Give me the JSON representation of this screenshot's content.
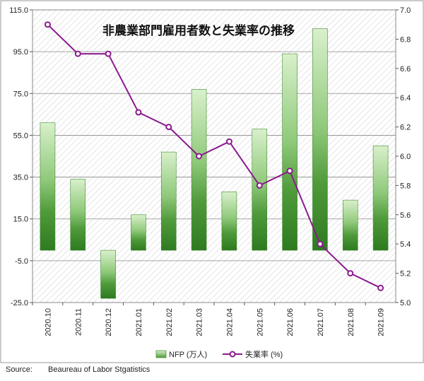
{
  "chart_data": {
    "type": "bar+line",
    "title": "非農業部門雇用者数と失業率の推移",
    "categories": [
      "2020.10",
      "2020.11",
      "2020.12",
      "2021.01",
      "2021.02",
      "2021.03",
      "2021.04",
      "2021.05",
      "2021.06",
      "2021.07",
      "2021.08",
      "2021.09"
    ],
    "series": [
      {
        "name": "NFP (万人)",
        "type": "bar",
        "axis": "left",
        "values": [
          61,
          34,
          -23,
          17,
          47,
          77,
          28,
          58,
          94,
          106,
          24,
          50
        ]
      },
      {
        "name": "失業率 (%)",
        "type": "line",
        "axis": "right",
        "values": [
          6.9,
          6.7,
          6.7,
          6.3,
          6.2,
          6.0,
          6.1,
          5.8,
          5.9,
          5.4,
          5.2,
          5.1
        ]
      }
    ],
    "y_left": {
      "ylim": [
        -25,
        115
      ],
      "ticks": [
        "115.0",
        "95.0",
        "75.0",
        "55.0",
        "35.0",
        "15.0",
        "-5.0",
        "-25.0"
      ]
    },
    "y_right": {
      "ylim": [
        5.0,
        7.0
      ],
      "ticks": [
        "7.0",
        "6.8",
        "6.6",
        "6.4",
        "6.2",
        "6.0",
        "5.8",
        "5.6",
        "5.4",
        "5.2",
        "5.0"
      ]
    },
    "grid": true,
    "legend_position": "bottom",
    "colors": {
      "bar_light": "#c9e8b8",
      "bar_dark": "#2f7d1f",
      "line": "#8b1a8e",
      "marker_fill": "#ffffff"
    }
  },
  "source": {
    "label": "Source:",
    "text": "Beaureau of Labor Stgatistics"
  }
}
